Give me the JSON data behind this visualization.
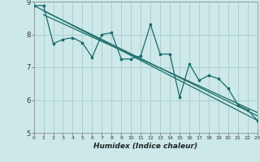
{
  "xlabel": "Humidex (Indice chaleur)",
  "xlim": [
    0,
    23
  ],
  "ylim": [
    5,
    9
  ],
  "yticks": [
    5,
    6,
    7,
    8,
    9
  ],
  "xticks": [
    0,
    1,
    2,
    3,
    4,
    5,
    6,
    7,
    8,
    9,
    10,
    11,
    12,
    13,
    14,
    15,
    16,
    17,
    18,
    19,
    20,
    21,
    22,
    23
  ],
  "bg_color": "#cce8e8",
  "grid_color": "#aacccc",
  "line_color": "#1a6b6b",
  "series1_x": [
    0,
    1,
    2,
    3,
    4,
    5,
    6,
    7,
    8,
    9,
    10,
    11,
    12,
    13,
    14,
    15,
    16,
    17,
    18,
    19,
    20,
    21,
    22,
    23
  ],
  "series1_y": [
    8.88,
    8.88,
    7.72,
    7.85,
    7.9,
    7.75,
    7.3,
    8.0,
    8.05,
    7.25,
    7.25,
    7.35,
    8.3,
    7.4,
    7.4,
    6.08,
    7.1,
    6.6,
    6.75,
    6.65,
    6.35,
    5.85,
    5.7,
    5.38
  ],
  "trend1_x": [
    0,
    23
  ],
  "trend1_y": [
    8.88,
    5.38
  ],
  "trend2_x": [
    1,
    23
  ],
  "trend2_y": [
    8.72,
    5.52
  ],
  "trend3_x": [
    1,
    23
  ],
  "trend3_y": [
    8.6,
    5.62
  ]
}
